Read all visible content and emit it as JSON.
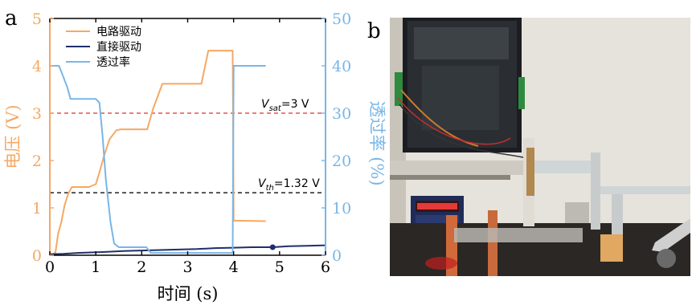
{
  "panel_a_label": "a",
  "panel_b_label": "b",
  "colors": {
    "circuit": "#F5A863",
    "direct": "#1F2F6B",
    "transmittance": "#79B6E6",
    "vsat_line": "#E8524F",
    "vth_line": "#222222"
  },
  "chart_data": {
    "type": "line",
    "xlabel": "时间 (s)",
    "ylabel_left": "电压 (V)",
    "ylabel_right": "透过率 (%)",
    "xlim": [
      0,
      6
    ],
    "ylim_left": [
      0,
      5
    ],
    "ylim_right": [
      0,
      50
    ],
    "xticks": [
      "0",
      "1",
      "2",
      "3",
      "4",
      "5",
      "6"
    ],
    "yticks_left": [
      "0",
      "1",
      "2",
      "3",
      "4",
      "5"
    ],
    "yticks_right": [
      "0",
      "10",
      "20",
      "30",
      "40",
      "50"
    ],
    "legend_placement": "top-left",
    "series": [
      {
        "name": "电路驱动",
        "axis": "left",
        "x": [
          0,
          0.12,
          0.18,
          0.25,
          0.32,
          0.4,
          0.48,
          0.85,
          1.0,
          1.08,
          1.18,
          1.3,
          1.45,
          1.55,
          2.12,
          2.25,
          2.45,
          3.3,
          3.45,
          3.98,
          4.0,
          4.7
        ],
        "y": [
          0,
          0.05,
          0.45,
          0.7,
          1.05,
          1.3,
          1.44,
          1.44,
          1.5,
          1.75,
          2.1,
          2.45,
          2.64,
          2.66,
          2.66,
          3.1,
          3.62,
          3.62,
          4.32,
          4.32,
          0.73,
          0.72
        ]
      },
      {
        "name": "直接驱动",
        "axis": "left",
        "x": [
          0,
          0.3,
          0.6,
          0.9,
          1.2,
          1.6,
          2.0,
          2.4,
          2.8,
          3.2,
          3.6,
          4.0,
          4.4,
          4.85,
          5.2,
          5.6,
          6.0
        ],
        "y": [
          0.02,
          0.03,
          0.05,
          0.06,
          0.07,
          0.09,
          0.1,
          0.11,
          0.12,
          0.13,
          0.15,
          0.16,
          0.17,
          0.17,
          0.19,
          0.2,
          0.21
        ]
      },
      {
        "name": "透过率",
        "axis": "right",
        "x": [
          0,
          0.2,
          0.28,
          0.38,
          0.45,
          0.55,
          0.85,
          1.0,
          1.08,
          1.15,
          1.22,
          1.32,
          1.4,
          1.5,
          2.1,
          2.2,
          3.98,
          4.0,
          4.7
        ],
        "y": [
          40,
          40,
          38,
          35.5,
          33,
          33,
          33,
          33,
          32.2,
          25,
          16,
          7,
          2.5,
          1.7,
          1.7,
          0.5,
          0.5,
          40,
          40
        ]
      }
    ],
    "markers": [
      {
        "series": "直接驱动",
        "x": 4.85,
        "y": 0.17
      }
    ],
    "reference_lines": [
      {
        "label": "Vsat=3 V",
        "label_main": "V",
        "label_sub": "sat",
        "label_rest": "=3 V",
        "axis": "left",
        "y": 3,
        "style": "dashed",
        "color_key": "vsat_line"
      },
      {
        "label": "Vth=1.32 V",
        "label_main": "V",
        "label_sub": "th",
        "label_rest": "=1.32 V",
        "axis": "left",
        "y": 1.32,
        "style": "dashed",
        "color_key": "vth_line"
      }
    ]
  }
}
